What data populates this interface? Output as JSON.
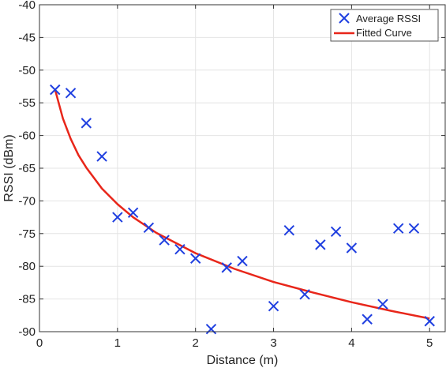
{
  "chart_data": {
    "type": "scatter",
    "xlabel": "Distance (m)",
    "ylabel": "RSSI (dBm)",
    "xlim": [
      0,
      5.2
    ],
    "ylim": [
      -90,
      -40
    ],
    "xticks": [
      0,
      1,
      2,
      3,
      4,
      5
    ],
    "yticks": [
      -90,
      -85,
      -80,
      -75,
      -70,
      -65,
      -60,
      -55,
      -50,
      -45,
      -40
    ],
    "grid": true,
    "legend_position": "top-right",
    "series": [
      {
        "name": "Average RSSI",
        "kind": "markers",
        "marker": "x",
        "color": "#1f3fe0",
        "x": [
          0.2,
          0.4,
          0.6,
          0.8,
          1.0,
          1.2,
          1.4,
          1.6,
          1.8,
          2.0,
          2.2,
          2.4,
          2.6,
          3.0,
          3.2,
          3.4,
          3.6,
          3.8,
          4.0,
          4.2,
          4.4,
          4.6,
          4.8,
          5.0
        ],
        "y": [
          -53.0,
          -53.5,
          -58.1,
          -63.2,
          -72.5,
          -71.8,
          -74.1,
          -76.0,
          -77.4,
          -78.8,
          -89.6,
          -80.2,
          -79.2,
          -86.1,
          -74.5,
          -84.3,
          -76.7,
          -74.7,
          -77.2,
          -88.1,
          -85.8,
          -74.2,
          -74.2,
          -88.4
        ]
      },
      {
        "name": "Fitted Curve",
        "kind": "line",
        "color": "#e8261a",
        "x": [
          0.2,
          0.3,
          0.4,
          0.5,
          0.6,
          0.8,
          1.0,
          1.2,
          1.5,
          2.0,
          2.5,
          3.0,
          3.5,
          4.0,
          4.5,
          5.0
        ],
        "y": [
          -53.0,
          -57.4,
          -60.5,
          -63.0,
          -64.9,
          -68.1,
          -70.5,
          -72.5,
          -74.9,
          -78.0,
          -80.4,
          -82.4,
          -84.0,
          -85.5,
          -86.8,
          -88.0
        ]
      }
    ]
  }
}
